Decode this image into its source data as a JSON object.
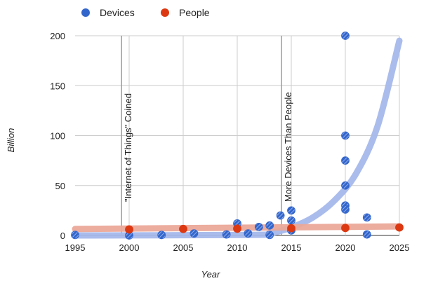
{
  "chart_data": {
    "type": "scatter",
    "xlabel": "Year",
    "ylabel": "Billion",
    "xlim": [
      1995,
      2025
    ],
    "ylim": [
      0,
      200
    ],
    "xticks": [
      1995,
      2000,
      2005,
      2010,
      2015,
      2020,
      2025
    ],
    "yticks": [
      0,
      50,
      100,
      150,
      200
    ],
    "grid": true,
    "legend_position": "top-left",
    "series": [
      {
        "name": "Devices",
        "color": "#3366cc",
        "marker": "hatched-circle",
        "points": [
          {
            "x": 1995,
            "y": 0.5
          },
          {
            "x": 2000,
            "y": 0
          },
          {
            "x": 2003,
            "y": 0.5
          },
          {
            "x": 2006,
            "y": 2
          },
          {
            "x": 2009,
            "y": 1
          },
          {
            "x": 2010,
            "y": 12
          },
          {
            "x": 2011,
            "y": 2
          },
          {
            "x": 2012,
            "y": 8.5
          },
          {
            "x": 2013,
            "y": 10
          },
          {
            "x": 2013,
            "y": 0.5
          },
          {
            "x": 2014,
            "y": 20
          },
          {
            "x": 2015,
            "y": 25
          },
          {
            "x": 2015,
            "y": 15
          },
          {
            "x": 2015,
            "y": 5
          },
          {
            "x": 2020,
            "y": 200
          },
          {
            "x": 2020,
            "y": 100
          },
          {
            "x": 2020,
            "y": 75
          },
          {
            "x": 2020,
            "y": 50
          },
          {
            "x": 2020,
            "y": 30
          },
          {
            "x": 2020,
            "y": 26
          },
          {
            "x": 2022,
            "y": 18
          },
          {
            "x": 2022,
            "y": 1
          }
        ],
        "trendline": {
          "type": "exponential",
          "color": "#a5b8eb",
          "points": [
            {
              "x": 1995,
              "y": 0
            },
            {
              "x": 2011,
              "y": 0.5
            },
            {
              "x": 2013,
              "y": 2
            },
            {
              "x": 2015,
              "y": 8
            },
            {
              "x": 2017,
              "y": 18
            },
            {
              "x": 2019,
              "y": 35
            },
            {
              "x": 2021,
              "y": 62
            },
            {
              "x": 2023,
              "y": 110
            },
            {
              "x": 2025,
              "y": 195
            }
          ]
        }
      },
      {
        "name": "People",
        "color": "#dc3912",
        "marker": "circle",
        "points": [
          {
            "x": 2000,
            "y": 6
          },
          {
            "x": 2005,
            "y": 6.5
          },
          {
            "x": 2010,
            "y": 6.8
          },
          {
            "x": 2015,
            "y": 7.2
          },
          {
            "x": 2020,
            "y": 7.5
          },
          {
            "x": 2025,
            "y": 8
          }
        ],
        "trendline": {
          "type": "linear",
          "color": "#eba899",
          "points": [
            {
              "x": 1995,
              "y": 6.5
            },
            {
              "x": 2025,
              "y": 9
            }
          ]
        }
      }
    ],
    "annotations": [
      {
        "x": 1999.3,
        "label": "\"Internet of Things\" Coined"
      },
      {
        "x": 2014.1,
        "label": "More Devices Than People"
      }
    ]
  }
}
